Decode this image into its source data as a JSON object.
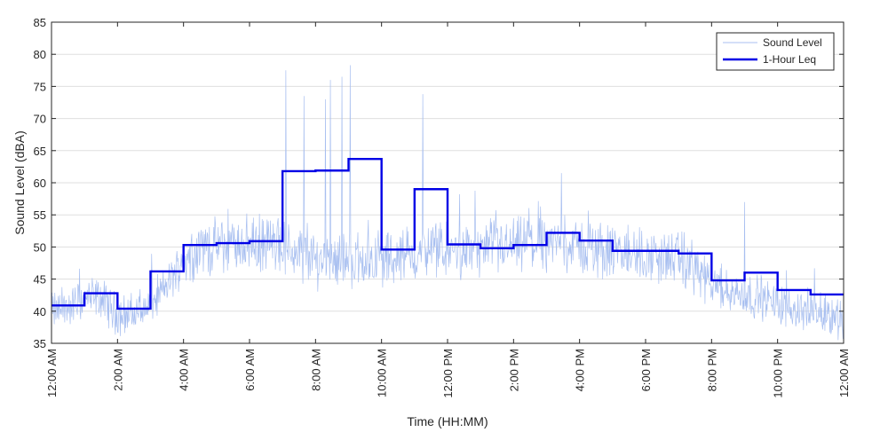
{
  "chart_data": {
    "type": "line",
    "title": "",
    "xlabel": "Time (HH:MM)",
    "ylabel": "Sound Level (dBA)",
    "ylim": [
      35,
      85
    ],
    "yticks": [
      35,
      40,
      45,
      50,
      55,
      60,
      65,
      70,
      75,
      80,
      85
    ],
    "xlim_hours": [
      0,
      24
    ],
    "xtick_hours": [
      0,
      2,
      4,
      6,
      8,
      10,
      12,
      14,
      16,
      18,
      20,
      22,
      24
    ],
    "xtick_labels": [
      "12:00 AM",
      "2:00 AM",
      "4:00 AM",
      "6:00 AM",
      "8:00 AM",
      "10:00 AM",
      "12:00 PM",
      "2:00 PM",
      "4:00 PM",
      "6:00 PM",
      "8:00 PM",
      "10:00 PM",
      "12:00 AM"
    ],
    "grid": "horizontal",
    "legend_position": "top-right",
    "series": [
      {
        "name": "Sound Level",
        "color": "#a8bff0",
        "style": "thin-noisy",
        "baseline_hours": [
          0,
          0.5,
          1,
          1.5,
          2,
          2.5,
          3,
          3.5,
          4,
          4.5,
          5,
          5.5,
          6,
          6.5,
          7,
          7.5,
          8,
          8.5,
          9,
          9.5,
          10,
          10.5,
          11,
          11.5,
          12,
          12.5,
          13,
          13.5,
          14,
          14.5,
          15,
          15.5,
          16,
          16.5,
          17,
          17.5,
          18,
          18.5,
          19,
          19.5,
          20,
          20.5,
          21,
          21.5,
          22,
          22.5,
          23,
          23.5,
          24
        ],
        "baseline_values": [
          40,
          40.5,
          42,
          42,
          39.5,
          39.5,
          41,
          44,
          48,
          50,
          50,
          50.5,
          50.5,
          50.5,
          50,
          49,
          48,
          48.5,
          48,
          48,
          48,
          48.5,
          48.5,
          49.5,
          49.5,
          49.5,
          49.5,
          50,
          50,
          50.5,
          50.5,
          50.5,
          50,
          49.5,
          49,
          49,
          48.5,
          48.5,
          48,
          47,
          43.5,
          43,
          42.5,
          42,
          41,
          40.5,
          40,
          39.5,
          39
        ],
        "spikes": [
          {
            "hour": 7.1,
            "value": 77.5
          },
          {
            "hour": 7.65,
            "value": 73.5
          },
          {
            "hour": 8.3,
            "value": 73.0
          },
          {
            "hour": 8.45,
            "value": 76.0
          },
          {
            "hour": 8.8,
            "value": 76.5
          },
          {
            "hour": 9.05,
            "value": 78.3
          },
          {
            "hour": 11.25,
            "value": 73.8
          },
          {
            "hour": 15.45,
            "value": 61.5
          },
          {
            "hour": 21.0,
            "value": 57.0
          }
        ]
      },
      {
        "name": "1-Hour Leq",
        "color": "#0000e6",
        "style": "step",
        "hours": [
          0,
          1,
          2,
          3,
          4,
          5,
          6,
          7,
          8,
          9,
          10,
          11,
          12,
          13,
          14,
          15,
          16,
          17,
          18,
          19,
          20,
          21,
          22,
          23
        ],
        "values": [
          40.9,
          42.8,
          40.4,
          46.2,
          50.3,
          50.6,
          50.9,
          61.8,
          61.9,
          63.7,
          49.6,
          59.0,
          50.4,
          49.8,
          50.3,
          52.2,
          51.0,
          49.4,
          49.4,
          49.0,
          44.8,
          46.0,
          43.3,
          42.6
        ]
      }
    ]
  }
}
